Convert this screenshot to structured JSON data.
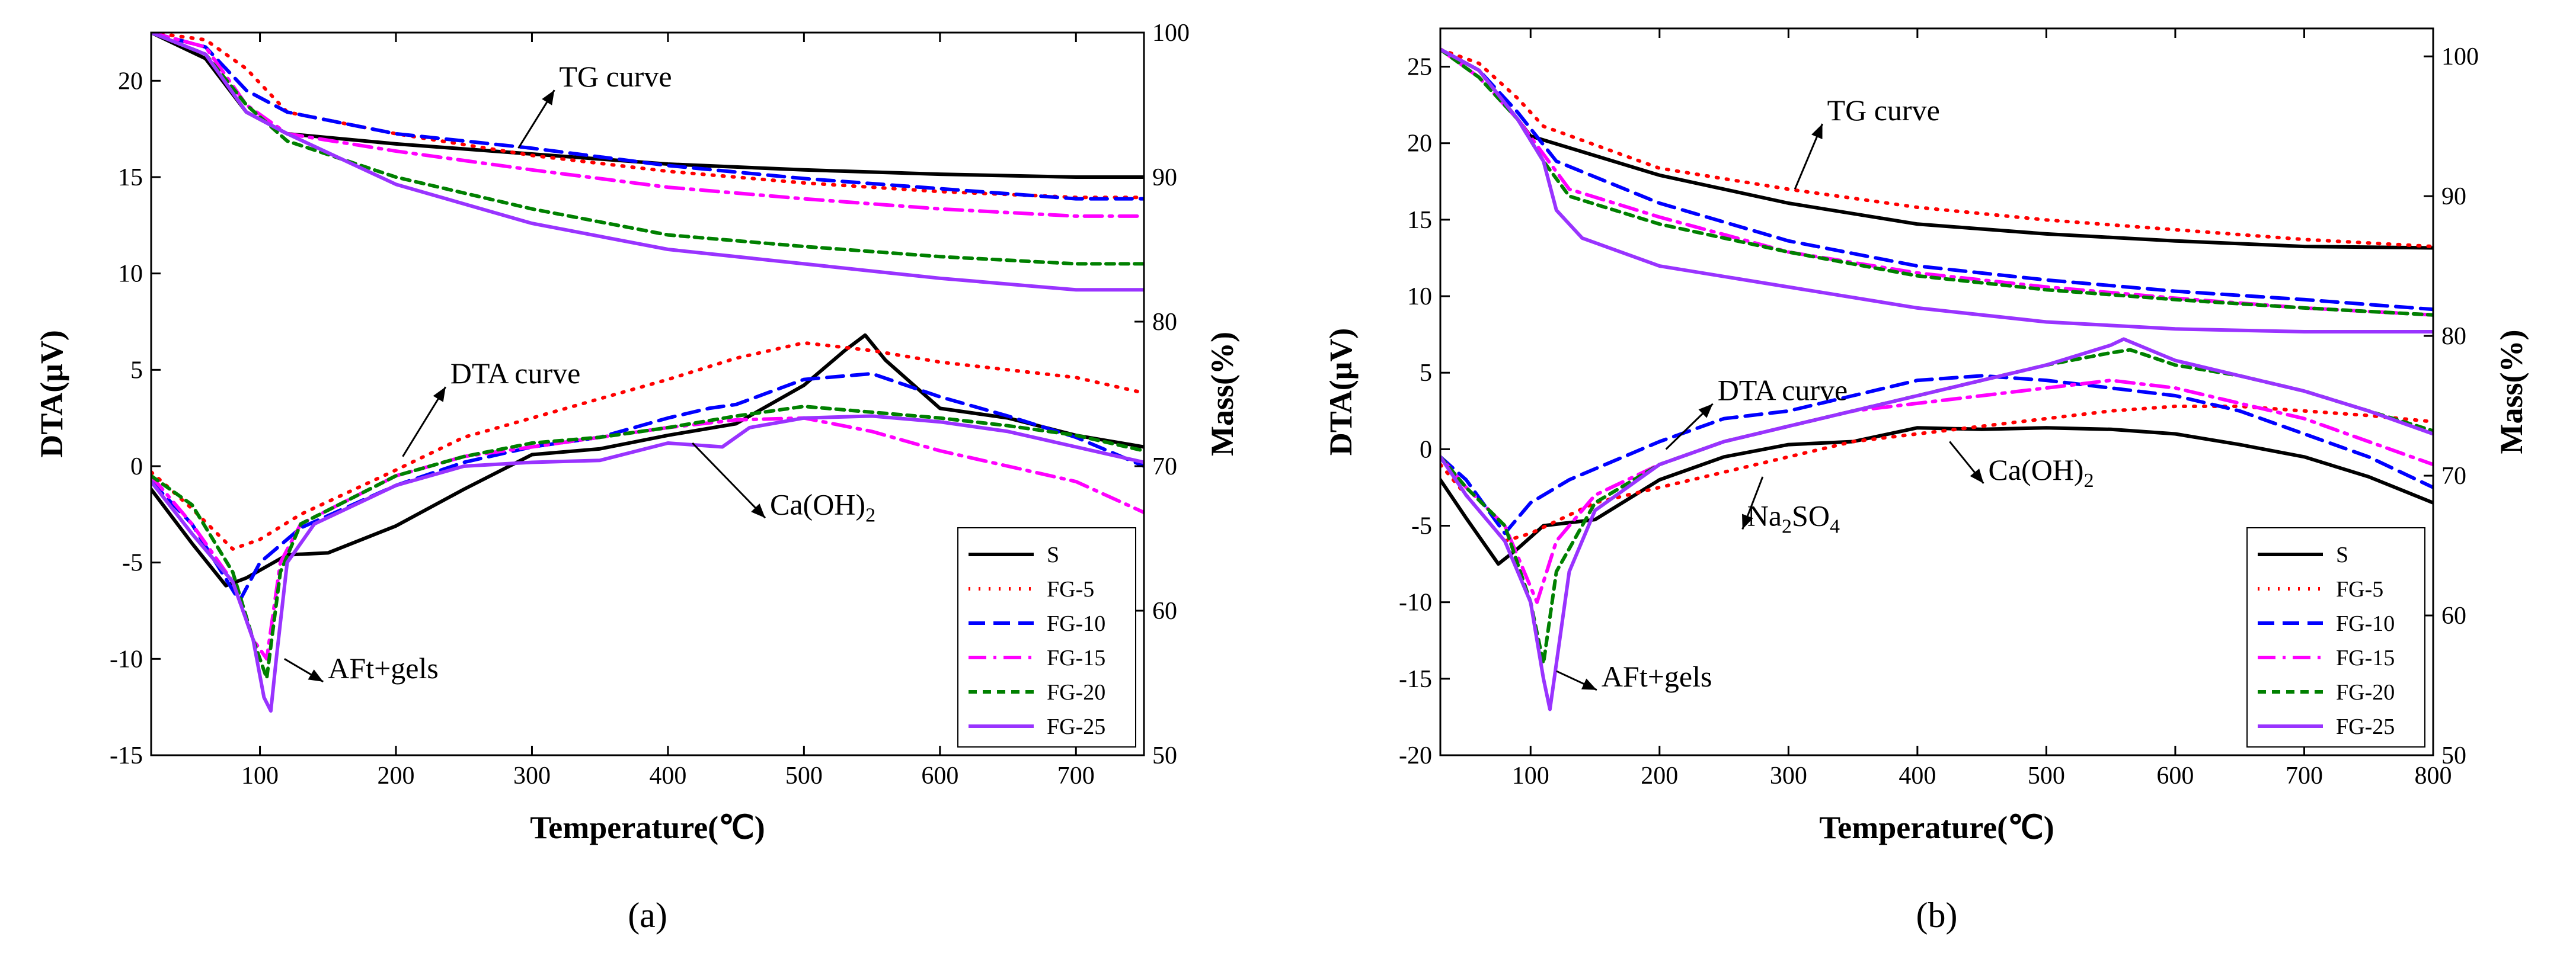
{
  "chart_data": [
    {
      "type": "line",
      "panel_label": "(a)",
      "xlabel": "Temperature(℃)",
      "ylabel_left": "DTA(μV)",
      "ylabel_right": "Mass(%)",
      "xlim": [
        20,
        750
      ],
      "ylim_left": [
        -15,
        22.5
      ],
      "ylim_right": [
        50,
        100
      ],
      "xticks": [
        100,
        200,
        300,
        400,
        500,
        600,
        700
      ],
      "yticks_left": [
        -15,
        -10,
        -5,
        0,
        5,
        10,
        15,
        20
      ],
      "yticks_right": [
        50,
        60,
        70,
        80,
        90,
        100
      ],
      "annotations": [
        {
          "text": "TG curve",
          "x": 320,
          "y": 19.7,
          "ax": 290,
          "ay": 16.5
        },
        {
          "text": "DTA curve",
          "x": 240,
          "y": 4.3,
          "ax": 205,
          "ay": 0.5
        },
        {
          "text": "AFt+gels",
          "x": 150,
          "y": -11,
          "ax": 118,
          "ay": -10
        },
        {
          "text": "Ca(OH)",
          "sub": "2",
          "x": 475,
          "y": -2.5,
          "ax": 418,
          "ay": 1.2
        }
      ],
      "legend": [
        "S",
        "FG-5",
        "FG-10",
        "FG-15",
        "FG-20",
        "FG-25"
      ],
      "legend_position": "bottom-right",
      "series": [
        {
          "name": "S",
          "color": "#000000",
          "dash": "solid",
          "tg_x": [
            20,
            60,
            90,
            120,
            200,
            300,
            400,
            500,
            600,
            700,
            750
          ],
          "tg_mass": [
            100,
            98.2,
            94.5,
            93.0,
            92.3,
            91.6,
            90.9,
            90.5,
            90.2,
            90.0,
            90.0
          ],
          "dta_x": [
            20,
            50,
            75,
            90,
            120,
            150,
            200,
            250,
            300,
            350,
            400,
            450,
            500,
            530,
            545,
            560,
            600,
            650,
            700,
            750
          ],
          "dta_y": [
            -1.2,
            -4.0,
            -6.2,
            -5.8,
            -4.6,
            -4.5,
            -3.1,
            -1.2,
            0.6,
            0.9,
            1.6,
            2.2,
            4.2,
            6.0,
            6.8,
            5.5,
            3.0,
            2.5,
            1.6,
            1.0
          ]
        },
        {
          "name": "FG-5",
          "color": "#ff0000",
          "dash": "dotted",
          "tg_x": [
            20,
            60,
            90,
            120,
            200,
            300,
            400,
            500,
            600,
            700,
            750
          ],
          "tg_mass": [
            100,
            99.5,
            97.5,
            94.5,
            93.0,
            91.5,
            90.4,
            89.6,
            89.0,
            88.6,
            88.6
          ],
          "dta_x": [
            20,
            50,
            80,
            100,
            130,
            200,
            250,
            300,
            350,
            400,
            450,
            500,
            550,
            600,
            650,
            700,
            750
          ],
          "dta_y": [
            -0.3,
            -2.2,
            -4.3,
            -3.8,
            -2.5,
            -0.2,
            1.5,
            2.5,
            3.5,
            4.5,
            5.6,
            6.4,
            6.0,
            5.4,
            5.0,
            4.6,
            3.8
          ]
        },
        {
          "name": "FG-10",
          "color": "#0000ff",
          "dash": "dashed",
          "tg_x": [
            20,
            60,
            90,
            120,
            200,
            300,
            400,
            500,
            600,
            700,
            750
          ],
          "tg_mass": [
            100,
            99.0,
            96.0,
            94.5,
            93.0,
            92.0,
            90.8,
            89.9,
            89.2,
            88.5,
            88.5
          ],
          "dta_x": [
            20,
            50,
            85,
            100,
            130,
            200,
            250,
            300,
            350,
            400,
            430,
            450,
            500,
            550,
            600,
            650,
            700,
            750
          ],
          "dta_y": [
            -0.8,
            -3.0,
            -7.0,
            -5.0,
            -3.2,
            -1.0,
            0.2,
            1.0,
            1.5,
            2.5,
            3.0,
            3.2,
            4.5,
            4.8,
            3.6,
            2.6,
            1.5,
            0.0
          ]
        },
        {
          "name": "FG-15",
          "color": "#ff00ff",
          "dash": "dashdot",
          "tg_x": [
            20,
            60,
            90,
            120,
            200,
            300,
            400,
            500,
            600,
            700,
            750
          ],
          "tg_mass": [
            100,
            99.0,
            95.0,
            93.0,
            91.8,
            90.5,
            89.3,
            88.5,
            87.8,
            87.3,
            87.3
          ],
          "dta_x": [
            20,
            50,
            80,
            95,
            105,
            115,
            130,
            200,
            250,
            300,
            350,
            400,
            450,
            500,
            550,
            600,
            650,
            700,
            750
          ],
          "dta_y": [
            -0.5,
            -3.0,
            -6.0,
            -9.0,
            -10.0,
            -5.0,
            -3.0,
            -0.5,
            0.5,
            1.0,
            1.5,
            2.0,
            2.4,
            2.5,
            1.8,
            0.8,
            0.0,
            -0.8,
            -2.4
          ]
        },
        {
          "name": "FG-20",
          "color": "#008000",
          "dash": "shortdash",
          "tg_x": [
            20,
            60,
            90,
            120,
            200,
            300,
            400,
            500,
            600,
            700,
            750
          ],
          "tg_mass": [
            100,
            98.5,
            95.0,
            92.5,
            90.0,
            87.8,
            86.0,
            85.2,
            84.5,
            84.0,
            84.0
          ],
          "dta_x": [
            20,
            50,
            80,
            95,
            105,
            115,
            130,
            200,
            250,
            300,
            350,
            400,
            450,
            500,
            550,
            600,
            650,
            700,
            750
          ],
          "dta_y": [
            -0.5,
            -2.0,
            -5.5,
            -9.0,
            -11.0,
            -5.5,
            -3.0,
            -0.5,
            0.5,
            1.2,
            1.5,
            2.0,
            2.6,
            3.1,
            2.8,
            2.5,
            2.1,
            1.6,
            0.8
          ]
        },
        {
          "name": "FG-25",
          "color": "#9933ff",
          "dash": "solid",
          "tg_x": [
            20,
            60,
            90,
            120,
            200,
            300,
            400,
            500,
            600,
            700,
            750
          ],
          "tg_mass": [
            100,
            98.5,
            94.5,
            93.0,
            89.5,
            86.8,
            85.0,
            84.0,
            83.0,
            82.2,
            82.2
          ],
          "dta_x": [
            20,
            50,
            80,
            95,
            103,
            108,
            112,
            120,
            140,
            200,
            250,
            300,
            350,
            400,
            440,
            460,
            500,
            550,
            600,
            650,
            700,
            750
          ],
          "dta_y": [
            -0.8,
            -3.5,
            -6.0,
            -9.0,
            -12.0,
            -12.7,
            -10.0,
            -5.0,
            -3.0,
            -1.0,
            0.0,
            0.2,
            0.3,
            1.2,
            1.0,
            2.0,
            2.5,
            2.6,
            2.3,
            1.8,
            1.0,
            0.2
          ]
        }
      ]
    },
    {
      "type": "line",
      "panel_label": "(b)",
      "xlabel": "Temperature(℃)",
      "ylabel_left": "DTA(μV)",
      "ylabel_right": "Mass(%)",
      "xlim": [
        30,
        800
      ],
      "ylim_left": [
        -20,
        27.5
      ],
      "ylim_right": [
        50,
        102
      ],
      "xticks": [
        100,
        200,
        300,
        400,
        500,
        600,
        700,
        800
      ],
      "yticks_left": [
        -20,
        -15,
        -10,
        -5,
        0,
        5,
        10,
        15,
        20,
        25
      ],
      "yticks_right": [
        50,
        60,
        70,
        80,
        90,
        100
      ],
      "annotations": [
        {
          "text": "TG curve",
          "x": 330,
          "y": 21.5,
          "ax": 305,
          "ay": 17
        },
        {
          "text": "DTA curve",
          "x": 245,
          "y": 3.2,
          "ax": 205,
          "ay": 0
        },
        {
          "text": "Na",
          "sub": "2",
          "text2": "SO",
          "sub2": "4",
          "x": 268,
          "y": -5.0,
          "ax": 280,
          "ay": -1.8
        },
        {
          "text": "Ca(OH)",
          "sub": "2",
          "x": 455,
          "y": -2.0,
          "ax": 425,
          "ay": 0.5
        },
        {
          "text": "AFt+gels",
          "x": 155,
          "y": -15.5,
          "ax": 120,
          "ay": -14.5
        }
      ],
      "legend": [
        "S",
        "FG-5",
        "FG-10",
        "FG-15",
        "FG-20",
        "FG-25"
      ],
      "legend_position": "bottom-right",
      "series": [
        {
          "name": "S",
          "color": "#000000",
          "dash": "solid",
          "tg_x": [
            30,
            60,
            90,
            100,
            200,
            300,
            400,
            500,
            600,
            700,
            800
          ],
          "tg_mass": [
            100.5,
            99,
            95.5,
            94.3,
            91.5,
            89.5,
            88,
            87.3,
            86.8,
            86.4,
            86.3
          ],
          "dta_x": [
            30,
            50,
            75,
            90,
            110,
            130,
            150,
            200,
            250,
            300,
            350,
            400,
            450,
            500,
            550,
            600,
            650,
            700,
            750,
            800
          ],
          "dta_y": [
            -2.0,
            -4.5,
            -7.5,
            -6.5,
            -5.0,
            -4.8,
            -4.6,
            -2.0,
            -0.5,
            0.3,
            0.5,
            1.4,
            1.3,
            1.4,
            1.3,
            1.0,
            0.3,
            -0.5,
            -1.8,
            -3.5
          ]
        },
        {
          "name": "FG-5",
          "color": "#ff0000",
          "dash": "dotted",
          "tg_x": [
            30,
            60,
            90,
            110,
            200,
            300,
            400,
            500,
            600,
            700,
            800
          ],
          "tg_mass": [
            100.5,
            99.5,
            97,
            95,
            92,
            90.5,
            89.2,
            88.3,
            87.6,
            86.9,
            86.4
          ],
          "dta_x": [
            30,
            50,
            80,
            100,
            150,
            200,
            250,
            300,
            350,
            400,
            450,
            500,
            550,
            600,
            650,
            700,
            750,
            800
          ],
          "dta_y": [
            -1.0,
            -3.0,
            -6.0,
            -5.5,
            -3.5,
            -2.5,
            -1.5,
            -0.5,
            0.5,
            1.0,
            1.5,
            2.0,
            2.5,
            2.8,
            2.8,
            2.5,
            2.2,
            1.8
          ]
        },
        {
          "name": "FG-10",
          "color": "#0000ff",
          "dash": "dashed",
          "tg_x": [
            30,
            60,
            90,
            120,
            200,
            300,
            400,
            500,
            600,
            700,
            800
          ],
          "tg_mass": [
            100.5,
            99,
            96,
            92.5,
            89.5,
            86.8,
            85,
            84,
            83.2,
            82.6,
            81.9
          ],
          "dta_x": [
            30,
            50,
            80,
            100,
            130,
            200,
            250,
            300,
            350,
            400,
            450,
            500,
            550,
            600,
            650,
            700,
            750,
            800
          ],
          "dta_y": [
            -0.5,
            -2.0,
            -5.5,
            -3.5,
            -2.0,
            0.5,
            2.0,
            2.5,
            3.5,
            4.5,
            4.8,
            4.5,
            4.0,
            3.5,
            2.5,
            1.0,
            -0.5,
            -2.5
          ]
        },
        {
          "name": "FG-15",
          "color": "#ff00ff",
          "dash": "dashdot",
          "tg_x": [
            30,
            60,
            90,
            110,
            130,
            200,
            300,
            400,
            500,
            600,
            700,
            800
          ],
          "tg_mass": [
            100.5,
            98.5,
            95.5,
            93,
            90.5,
            88.5,
            86,
            84.5,
            83.5,
            82.7,
            82.0,
            81.5
          ],
          "dta_x": [
            30,
            50,
            80,
            95,
            105,
            120,
            150,
            200,
            250,
            300,
            350,
            400,
            450,
            500,
            550,
            600,
            650,
            700,
            750,
            800
          ],
          "dta_y": [
            -0.5,
            -2.5,
            -5.0,
            -8.0,
            -10.0,
            -6.0,
            -3.0,
            -1.0,
            0.5,
            1.5,
            2.5,
            3.0,
            3.5,
            4.0,
            4.5,
            4.0,
            3.0,
            2.0,
            0.5,
            -1.0
          ]
        },
        {
          "name": "FG-20",
          "color": "#008000",
          "dash": "shortdash",
          "tg_x": [
            30,
            60,
            90,
            110,
            130,
            200,
            300,
            400,
            500,
            600,
            700,
            800
          ],
          "tg_mass": [
            100.5,
            98.5,
            95.5,
            92.5,
            90,
            88,
            86,
            84.3,
            83.3,
            82.6,
            82.0,
            81.5
          ],
          "dta_x": [
            30,
            50,
            80,
            100,
            110,
            120,
            150,
            200,
            250,
            300,
            350,
            400,
            450,
            500,
            550,
            565,
            600,
            650,
            700,
            750,
            800
          ],
          "dta_y": [
            -0.5,
            -2.5,
            -5.0,
            -10.0,
            -14.0,
            -8.0,
            -3.5,
            -1.0,
            0.5,
            1.5,
            2.5,
            3.5,
            4.5,
            5.5,
            6.3,
            6.5,
            5.5,
            4.8,
            3.8,
            2.5,
            1.2
          ]
        },
        {
          "name": "FG-25",
          "color": "#9933ff",
          "dash": "solid",
          "tg_x": [
            30,
            60,
            90,
            110,
            120,
            140,
            200,
            300,
            400,
            500,
            600,
            700,
            800
          ],
          "tg_mass": [
            100.5,
            99,
            95.5,
            92.5,
            89,
            87,
            85,
            83.5,
            82,
            81,
            80.5,
            80.3,
            80.3
          ],
          "dta_x": [
            30,
            50,
            80,
            100,
            110,
            115,
            120,
            130,
            150,
            200,
            250,
            300,
            350,
            400,
            450,
            500,
            550,
            560,
            580,
            600,
            650,
            700,
            750,
            800
          ],
          "dta_y": [
            -0.5,
            -3.0,
            -6.0,
            -10.0,
            -15.0,
            -17.0,
            -14.0,
            -8.0,
            -4.0,
            -1.0,
            0.5,
            1.5,
            2.5,
            3.5,
            4.5,
            5.5,
            6.8,
            7.2,
            6.5,
            5.8,
            4.8,
            3.8,
            2.5,
            1.0
          ]
        }
      ]
    }
  ]
}
